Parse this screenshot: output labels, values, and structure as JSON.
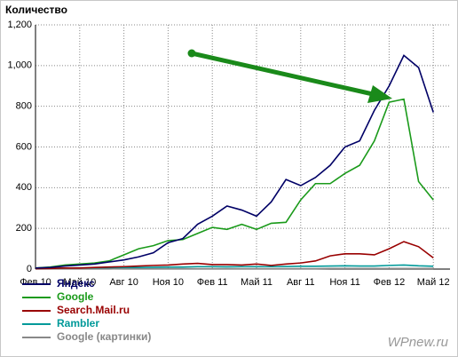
{
  "chart_data": {
    "type": "line",
    "title": "Количество",
    "categories": [
      "Фев 10",
      null,
      null,
      "Май 10",
      null,
      null,
      "Авг 10",
      null,
      null,
      "Ноя 10",
      null,
      null,
      "Фев 11",
      null,
      null,
      "Май 11",
      null,
      null,
      "Авг 11",
      null,
      null,
      "Ноя 11",
      null,
      null,
      "Фев 12",
      null,
      null,
      "Май 12"
    ],
    "series": [
      {
        "name": "Яндекс",
        "color": "#000066",
        "values": [
          5,
          8,
          15,
          20,
          25,
          35,
          45,
          60,
          80,
          130,
          150,
          220,
          260,
          310,
          290,
          260,
          330,
          440,
          410,
          450,
          510,
          600,
          630,
          780,
          900,
          1050,
          990,
          770
        ]
      },
      {
        "name": "Google",
        "color": "#1a9a1a",
        "values": [
          5,
          10,
          20,
          25,
          30,
          40,
          70,
          100,
          115,
          140,
          145,
          175,
          205,
          195,
          220,
          195,
          225,
          230,
          340,
          420,
          420,
          470,
          510,
          630,
          820,
          835,
          430,
          340
        ]
      },
      {
        "name": "Search.Mail.ru",
        "color": "#990000",
        "values": [
          2,
          3,
          5,
          5,
          8,
          10,
          12,
          15,
          18,
          20,
          25,
          28,
          22,
          22,
          20,
          25,
          18,
          25,
          30,
          40,
          65,
          75,
          75,
          70,
          100,
          135,
          110,
          55
        ]
      },
      {
        "name": "Rambler",
        "color": "#009999",
        "values": [
          3,
          4,
          5,
          6,
          6,
          7,
          8,
          8,
          9,
          10,
          10,
          12,
          12,
          11,
          12,
          12,
          12,
          13,
          14,
          14,
          15,
          16,
          15,
          15,
          18,
          20,
          16,
          14
        ]
      },
      {
        "name": "Google (картинки)",
        "color": "#888888",
        "values": [
          1,
          1,
          1,
          1,
          1,
          1,
          2,
          2,
          2,
          2,
          2,
          2,
          2,
          2,
          2,
          2,
          2,
          2,
          2,
          2,
          3,
          3,
          3,
          3,
          3,
          3,
          3,
          3
        ]
      }
    ],
    "ylim": [
      0,
      1200
    ],
    "yticks": [
      0,
      200,
      400,
      600,
      800,
      {
        "value": 1000,
        "label": "1,000"
      },
      {
        "value": 1200,
        "label": "1,200"
      }
    ],
    "grid": true,
    "watermark": "WPnew.ru"
  }
}
